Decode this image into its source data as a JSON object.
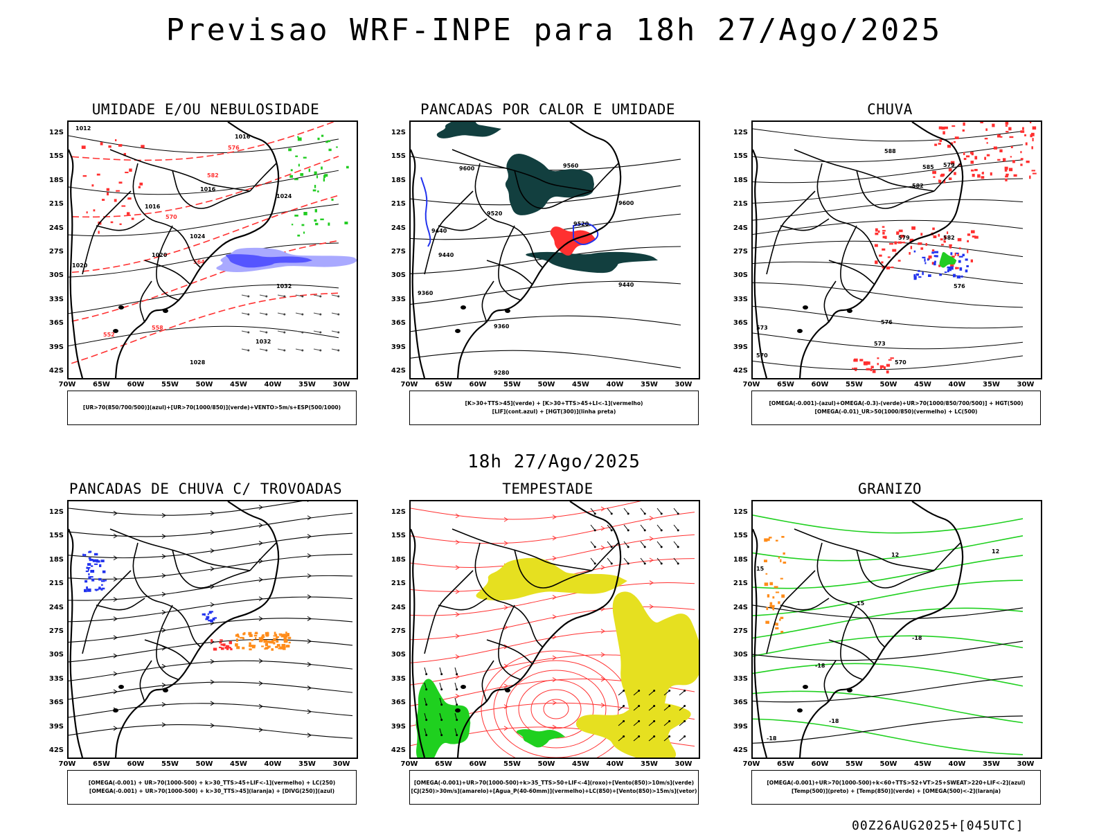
{
  "title": "Previsao WRF-INPE  para 18h 27/Ago/2025",
  "subtitle": "18h 27/Ago/2025",
  "footer": "00Z26AUG2025+[045UTC]",
  "axes": {
    "lat_labels": [
      "12S",
      "15S",
      "18S",
      "21S",
      "24S",
      "27S",
      "30S",
      "33S",
      "36S",
      "39S",
      "42S"
    ],
    "lon_labels": [
      "70W",
      "65W",
      "60W",
      "55W",
      "50W",
      "45W",
      "40W",
      "35W",
      "30W"
    ]
  },
  "colors": {
    "humidity_blue": "#a9a9ff",
    "humidity_green": "#22cc22",
    "red_contour": "#ff3030",
    "dark_teal": "#123f3f",
    "orange": "#ff8c1a",
    "yellow": "#e6e020",
    "storm_green": "#1fd01f"
  },
  "panels": [
    {
      "id": "umidade",
      "title": "UMIDADE E/OU NEBULOSIDADE",
      "legend": [
        "[UR>70(850/700/500)](azul)+[UR>70(1000/850)](verde)+VENTO>5m/s+ESP(500/1000)"
      ],
      "contour_labels": [
        "1012",
        "1016",
        "1016",
        "1016",
        "1020",
        "1024",
        "1028",
        "1032",
        "1032",
        "1024",
        "1020"
      ],
      "thickness_labels": [
        "576",
        "570",
        "564",
        "558",
        "552",
        "582"
      ]
    },
    {
      "id": "pancadas-calor",
      "title": "PANCADAS POR CALOR E UMIDADE",
      "legend": [
        "[K>30+TTS>45](verde) + [K>30+TTS>45+LI<-1](vermelho)",
        "[LIF](cont.azul) + [HGT(300)](linha preta)"
      ],
      "contour_labels": [
        "9600",
        "9560",
        "9520",
        "9440",
        "9440",
        "9520",
        "9600",
        "9440",
        "9360",
        "9360",
        "9280"
      ]
    },
    {
      "id": "chuva",
      "title": "CHUVA",
      "legend": [
        "[OMEGA(-0.001)-(azul)+OMEGA(-0.3)-(verde)+UR>70(1000/850/700/500)] + HGT(500)",
        "[OMEGA(-0.01)_UR>50(1000/850)(vermelho) + LC(500)"
      ],
      "contour_labels": [
        "588",
        "585",
        "582",
        "579",
        "579",
        "576",
        "576",
        "573",
        "573",
        "570",
        "570",
        "582"
      ]
    },
    {
      "id": "trovoadas",
      "title": "PANCADAS DE CHUVA C/ TROVOADAS",
      "legend": [
        "[OMEGA(-0.001) + UR>70(1000-500) + k>30_TTS>45+LIF<-1](vermelho) + LC(250)",
        "[OMEGA(-0.001) + UR>70(1000-500) + k>30_TTS>45](laranja) + [DIVG(250)](azul)"
      ]
    },
    {
      "id": "tempestade",
      "title": "TEMPESTADE",
      "legend": [
        "[OMEGA(-0.001)+UR>70(1000-500)+k>35_TTS>50+LIF<-4](roxo)+[Vento(850)>10m/s](verde)",
        "[CJ(250)>30m/s](amarelo)+[Agua_P(40-60mm)](vermelho)+LC(850)+[Vento(850)>15m/s](vetor)"
      ]
    },
    {
      "id": "granizo",
      "title": "GRANIZO",
      "legend": [
        "[OMEGA(-0.001)+UR>70(1000-500)+k<60+TTS>52+VT>25+SWEAT>220+LIF<-2](azul)",
        "[Temp(500)](preto) + [Temp(850)](verde) + [OMEGA(500)<-2](laranja)"
      ],
      "contour_labels": [
        "-18",
        "-18",
        "-18",
        "-18",
        "12",
        "15",
        "15",
        "12"
      ]
    }
  ]
}
